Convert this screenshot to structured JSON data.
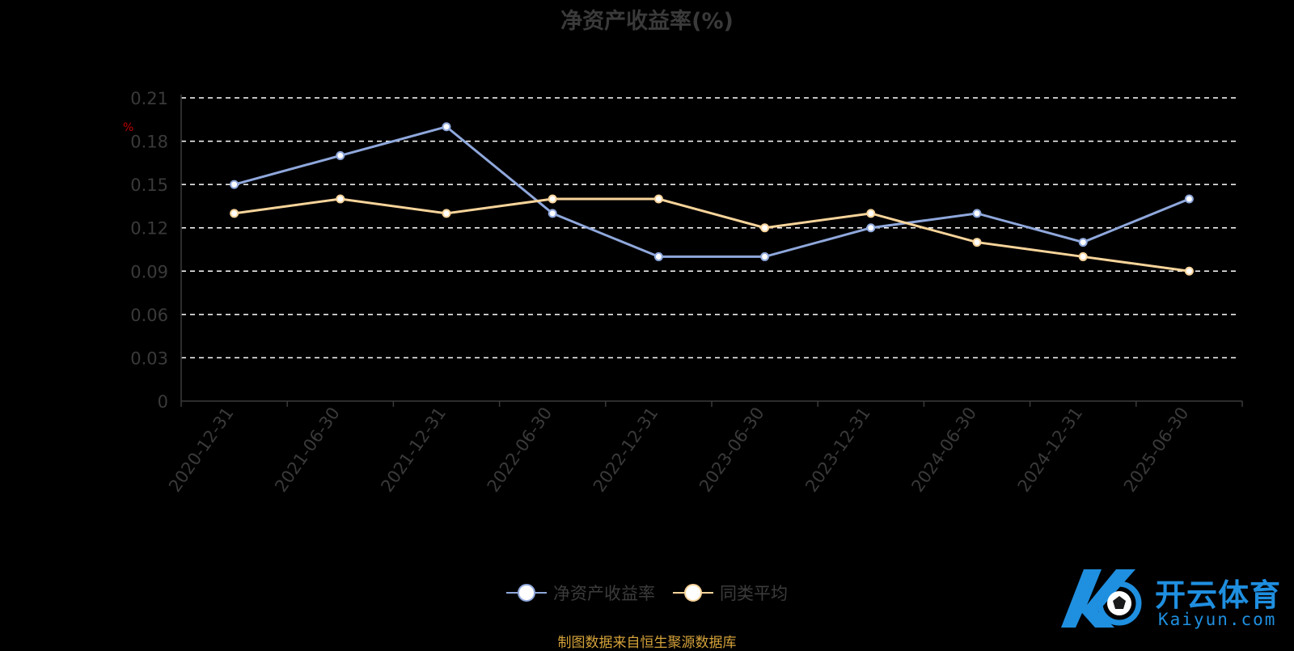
{
  "chart_data": {
    "type": "line",
    "title": "净资产收益率(%)",
    "unit_label": "%",
    "categories": [
      "2020-12-31",
      "2021-06-30",
      "2021-12-31",
      "2022-06-30",
      "2022-12-31",
      "2023-06-30",
      "2023-12-31",
      "2024-06-30",
      "2024-12-31",
      "2025-06-30"
    ],
    "series": [
      {
        "name": "净资产收益率",
        "color": "#8fa8dc",
        "values": [
          0.15,
          0.17,
          0.19,
          0.13,
          0.1,
          0.1,
          0.12,
          0.13,
          0.11,
          0.14
        ]
      },
      {
        "name": "同类平均",
        "color": "#f8d49a",
        "values": [
          0.13,
          0.14,
          0.13,
          0.14,
          0.14,
          0.12,
          0.13,
          0.11,
          0.1,
          0.09
        ]
      }
    ],
    "ylim": [
      0,
      0.21
    ],
    "yticks": [
      "0",
      "0.03",
      "0.06",
      "0.09",
      "0.12",
      "0.15",
      "0.18",
      "0.21"
    ],
    "grid": true,
    "legend_position": "bottom-center"
  },
  "source_note": "制图数据来自恒生聚源数据库",
  "watermark": {
    "brand": "开云体育",
    "domain": "Kaiyun.com"
  }
}
